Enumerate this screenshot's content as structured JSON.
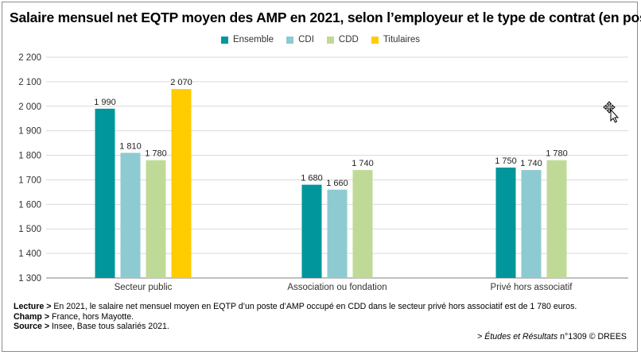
{
  "title": "Salaire mensuel net EQTP moyen des AMP en 2021, selon l’employeur et le type de contrat (en poste)",
  "colors": {
    "Ensemble": "#00969b",
    "CDI": "#8ecad1",
    "CDD": "#bfda96",
    "Titulaires": "#ffcc00",
    "grid": "#d9d9d9",
    "axis": "#7f7f7f"
  },
  "chart_data": {
    "type": "bar",
    "title": "Salaire mensuel net EQTP moyen des AMP en 2021, selon l’employeur et le type de contrat (en poste)",
    "categories": [
      "Secteur public",
      "Association ou fondation",
      "Privé hors associatif"
    ],
    "series": [
      {
        "name": "Ensemble",
        "values": [
          1990,
          1680,
          1750
        ],
        "labels": [
          "1 990",
          "1 680",
          "1 750"
        ]
      },
      {
        "name": "CDI",
        "values": [
          1810,
          1660,
          1740
        ],
        "labels": [
          "1 810",
          "1 660",
          "1 740"
        ]
      },
      {
        "name": "CDD",
        "values": [
          1780,
          1740,
          1780
        ],
        "labels": [
          "1 780",
          "1 740",
          "1 780"
        ]
      },
      {
        "name": "Titulaires",
        "values": [
          2070,
          null,
          null
        ],
        "labels": [
          "2 070",
          "",
          ""
        ]
      }
    ],
    "ylim": [
      1300,
      2200
    ],
    "yticks": [
      1300,
      1400,
      1500,
      1600,
      1700,
      1800,
      1900,
      2000,
      2100,
      2200
    ],
    "ytick_labels": [
      "1 300",
      "1 400",
      "1 500",
      "1 600",
      "1 700",
      "1 800",
      "1 900",
      "2 000",
      "2 100",
      "2 200"
    ],
    "xlabel": "",
    "ylabel": "",
    "grid": true,
    "legend": "top-center"
  },
  "notes": {
    "lecture_label": "Lecture >",
    "lecture_text": " En 2021, le salaire net mensuel moyen en EQTP d’un poste d’AMP occupé en CDD dans le secteur privé hors associatif est de 1 780 euros.",
    "champ_label": "Champ >",
    "champ_text": " France, hors Mayotte.",
    "source_label": "Source >",
    "source_text": " Insee, Base tous salariés 2021."
  },
  "credit": {
    "prefix": "> ",
    "publication": "Études et Résultats",
    "suffix": " n°1309 © DREES"
  },
  "cursor_icon": "move-cursor-icon"
}
